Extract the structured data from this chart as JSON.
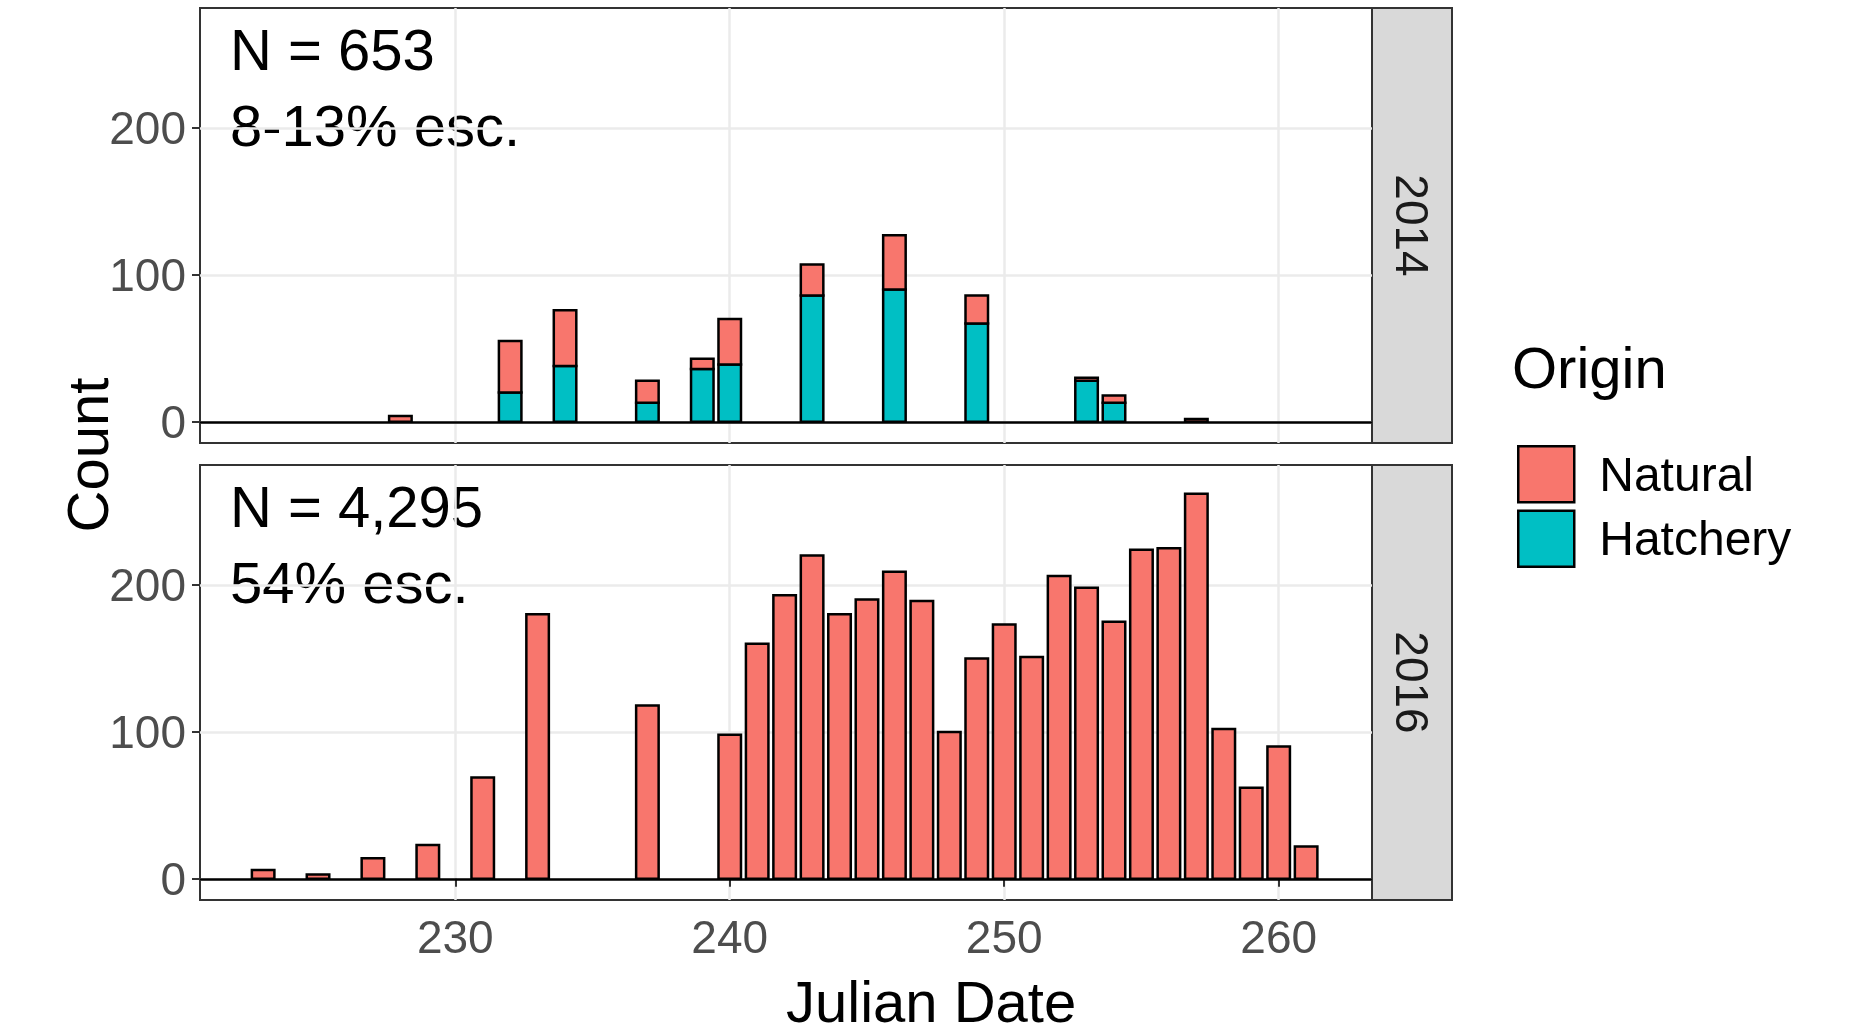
{
  "chart_data": [
    {
      "type": "bar",
      "title": "2014",
      "ylabel": "Count",
      "legend_title": "Origin",
      "legend": "right",
      "stacked": true,
      "grid": true,
      "tick_labels": "y",
      "annotations": [
        "N = 653",
        "8-13% esc."
      ],
      "x": [
        228,
        232,
        234,
        237,
        239,
        240,
        243,
        246,
        249,
        253,
        254,
        257
      ],
      "xlim": [
        220.7,
        263.4
      ],
      "xticks": [
        230,
        240,
        250,
        260
      ],
      "ylim": [
        -14.4,
        281.6
      ],
      "yticks": [
        0,
        100,
        200
      ],
      "series": [
        {
          "name": "Hatchery",
          "color": "#00bfc4",
          "values": [
            0,
            20,
            38,
            13,
            36,
            39,
            86,
            90,
            67,
            28,
            13,
            0
          ]
        },
        {
          "name": "Natural",
          "color": "#f8766d",
          "values": [
            4,
            35,
            38,
            15,
            7,
            31,
            21,
            37,
            19,
            2,
            5,
            2
          ]
        }
      ]
    },
    {
      "type": "bar",
      "title": "2016",
      "xlabel": "Julian Date",
      "grid": true,
      "annotations": [
        "N = 4,295",
        "54% esc."
      ],
      "x": [
        223,
        225,
        227,
        229,
        231,
        233,
        237,
        240,
        241,
        242,
        243,
        244,
        245,
        246,
        247,
        248,
        249,
        250,
        251,
        252,
        253,
        254,
        255,
        256,
        257,
        258,
        259,
        260,
        261
      ],
      "xlim": [
        220.7,
        263.4
      ],
      "xticks": [
        230,
        240,
        250,
        260
      ],
      "ylim": [
        -14.4,
        281.6
      ],
      "yticks": [
        0,
        100,
        200
      ],
      "series": [
        {
          "color": "#f8766d",
          "values": [
            6,
            3,
            14,
            23,
            69,
            180,
            118,
            98,
            160,
            193,
            220,
            180,
            190,
            209,
            189,
            100,
            150,
            173,
            151,
            206,
            198,
            175,
            224,
            225,
            262,
            102,
            62,
            90,
            22
          ]
        }
      ]
    }
  ]
}
